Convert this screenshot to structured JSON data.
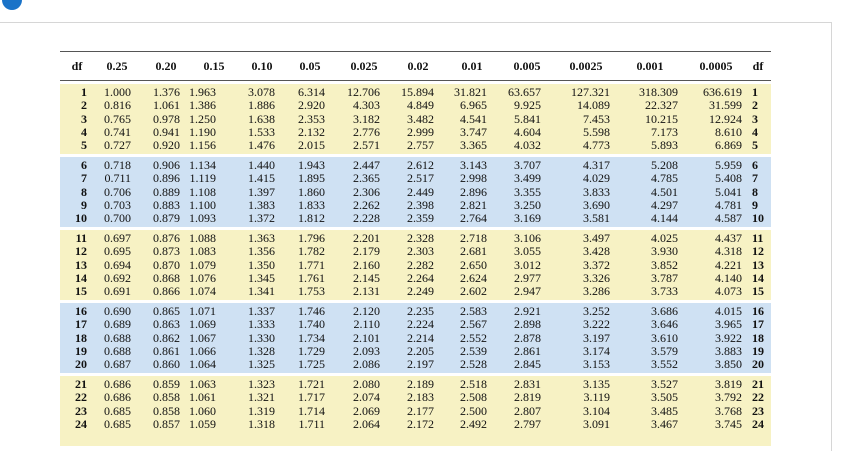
{
  "table": {
    "header": [
      "df",
      "0.25",
      "0.20",
      "0.15",
      "0.10",
      "0.05",
      "0.025",
      "0.02",
      "0.01",
      "0.005",
      "0.0025",
      "0.001",
      "0.0005",
      "df"
    ],
    "rows": [
      {
        "df": "1",
        "values": [
          "1.000",
          "1.376",
          "1.963",
          "3.078",
          "6.314",
          "12.706",
          "15.894",
          "31.821",
          "63.657",
          "127.321",
          "318.309",
          "636.619"
        ]
      },
      {
        "df": "2",
        "values": [
          "0.816",
          "1.061",
          "1.386",
          "1.886",
          "2.920",
          "4.303",
          "4.849",
          "6.965",
          "9.925",
          "14.089",
          "22.327",
          "31.599"
        ]
      },
      {
        "df": "3",
        "values": [
          "0.765",
          "0.978",
          "1.250",
          "1.638",
          "2.353",
          "3.182",
          "3.482",
          "4.541",
          "5.841",
          "7.453",
          "10.215",
          "12.924"
        ]
      },
      {
        "df": "4",
        "values": [
          "0.741",
          "0.941",
          "1.190",
          "1.533",
          "2.132",
          "2.776",
          "2.999",
          "3.747",
          "4.604",
          "5.598",
          "7.173",
          "8.610"
        ]
      },
      {
        "df": "5",
        "values": [
          "0.727",
          "0.920",
          "1.156",
          "1.476",
          "2.015",
          "2.571",
          "2.757",
          "3.365",
          "4.032",
          "4.773",
          "5.893",
          "6.869"
        ]
      },
      {
        "df": "6",
        "values": [
          "0.718",
          "0.906",
          "1.134",
          "1.440",
          "1.943",
          "2.447",
          "2.612",
          "3.143",
          "3.707",
          "4.317",
          "5.208",
          "5.959"
        ]
      },
      {
        "df": "7",
        "values": [
          "0.711",
          "0.896",
          "1.119",
          "1.415",
          "1.895",
          "2.365",
          "2.517",
          "2.998",
          "3.499",
          "4.029",
          "4.785",
          "5.408"
        ]
      },
      {
        "df": "8",
        "values": [
          "0.706",
          "0.889",
          "1.108",
          "1.397",
          "1.860",
          "2.306",
          "2.449",
          "2.896",
          "3.355",
          "3.833",
          "4.501",
          "5.041"
        ]
      },
      {
        "df": "9",
        "values": [
          "0.703",
          "0.883",
          "1.100",
          "1.383",
          "1.833",
          "2.262",
          "2.398",
          "2.821",
          "3.250",
          "3.690",
          "4.297",
          "4.781"
        ]
      },
      {
        "df": "10",
        "values": [
          "0.700",
          "0.879",
          "1.093",
          "1.372",
          "1.812",
          "2.228",
          "2.359",
          "2.764",
          "3.169",
          "3.581",
          "4.144",
          "4.587"
        ]
      },
      {
        "df": "11",
        "values": [
          "0.697",
          "0.876",
          "1.088",
          "1.363",
          "1.796",
          "2.201",
          "2.328",
          "2.718",
          "3.106",
          "3.497",
          "4.025",
          "4.437"
        ]
      },
      {
        "df": "12",
        "values": [
          "0.695",
          "0.873",
          "1.083",
          "1.356",
          "1.782",
          "2.179",
          "2.303",
          "2.681",
          "3.055",
          "3.428",
          "3.930",
          "4.318"
        ]
      },
      {
        "df": "13",
        "values": [
          "0.694",
          "0.870",
          "1.079",
          "1.350",
          "1.771",
          "2.160",
          "2.282",
          "2.650",
          "3.012",
          "3.372",
          "3.852",
          "4.221"
        ]
      },
      {
        "df": "14",
        "values": [
          "0.692",
          "0.868",
          "1.076",
          "1.345",
          "1.761",
          "2.145",
          "2.264",
          "2.624",
          "2.977",
          "3.326",
          "3.787",
          "4.140"
        ]
      },
      {
        "df": "15",
        "values": [
          "0.691",
          "0.866",
          "1.074",
          "1.341",
          "1.753",
          "2.131",
          "2.249",
          "2.602",
          "2.947",
          "3.286",
          "3.733",
          "4.073"
        ]
      },
      {
        "df": "16",
        "values": [
          "0.690",
          "0.865",
          "1.071",
          "1.337",
          "1.746",
          "2.120",
          "2.235",
          "2.583",
          "2.921",
          "3.252",
          "3.686",
          "4.015"
        ]
      },
      {
        "df": "17",
        "values": [
          "0.689",
          "0.863",
          "1.069",
          "1.333",
          "1.740",
          "2.110",
          "2.224",
          "2.567",
          "2.898",
          "3.222",
          "3.646",
          "3.965"
        ]
      },
      {
        "df": "18",
        "values": [
          "0.688",
          "0.862",
          "1.067",
          "1.330",
          "1.734",
          "2.101",
          "2.214",
          "2.552",
          "2.878",
          "3.197",
          "3.610",
          "3.922"
        ]
      },
      {
        "df": "19",
        "values": [
          "0.688",
          "0.861",
          "1.066",
          "1.328",
          "1.729",
          "2.093",
          "2.205",
          "2.539",
          "2.861",
          "3.174",
          "3.579",
          "3.883"
        ]
      },
      {
        "df": "20",
        "values": [
          "0.687",
          "0.860",
          "1.064",
          "1.325",
          "1.725",
          "2.086",
          "2.197",
          "2.528",
          "2.845",
          "3.153",
          "3.552",
          "3.850"
        ]
      },
      {
        "df": "21",
        "values": [
          "0.686",
          "0.859",
          "1.063",
          "1.323",
          "1.721",
          "2.080",
          "2.189",
          "2.518",
          "2.831",
          "3.135",
          "3.527",
          "3.819"
        ]
      },
      {
        "df": "22",
        "values": [
          "0.686",
          "0.858",
          "1.061",
          "1.321",
          "1.717",
          "2.074",
          "2.183",
          "2.508",
          "2.819",
          "3.119",
          "3.505",
          "3.792"
        ]
      },
      {
        "df": "23",
        "values": [
          "0.685",
          "0.858",
          "1.060",
          "1.319",
          "1.714",
          "2.069",
          "2.177",
          "2.500",
          "2.807",
          "3.104",
          "3.485",
          "3.768"
        ]
      },
      {
        "df": "24",
        "values": [
          "0.685",
          "0.857",
          "1.059",
          "1.318",
          "1.711",
          "2.064",
          "2.172",
          "2.492",
          "2.797",
          "3.091",
          "3.467",
          "3.745"
        ]
      }
    ]
  }
}
